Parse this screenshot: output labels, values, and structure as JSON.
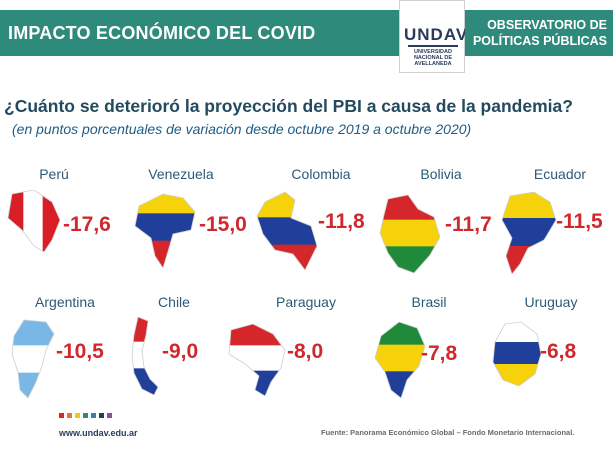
{
  "header": {
    "title": "IMPACTO ECONÓMICO DEL COVID",
    "logo": {
      "mark": "UNDAV",
      "sub": [
        "UNIVERSIDAD",
        "NACIONAL DE",
        "AVELLANEDA"
      ]
    },
    "observatorio": [
      "OBSERVATORIO DE",
      "POLÍTICAS PÚBLICAS"
    ]
  },
  "question": "¿Cuánto se deterioró la proyección del PBI a causa de la pandemia?",
  "subtitle": "(en puntos porcentuales de variación desde octubre 2019 a octubre 2020)",
  "chart_data": {
    "type": "table",
    "unit": "puntos porcentuales",
    "categories": [
      "Perú",
      "Venezuela",
      "Colombia",
      "Bolivia",
      "Ecuador",
      "Argentina",
      "Chile",
      "Paraguay",
      "Brasil",
      "Uruguay"
    ],
    "values": [
      -17.6,
      -15.0,
      -11.8,
      -11.7,
      -11.5,
      -10.5,
      -9.0,
      -8.0,
      -7.8,
      -6.8
    ],
    "labels": [
      "-17,6",
      "-15,0",
      "-11,8",
      "-11,7",
      "-11,5",
      "-10,5",
      "-9,0",
      "-8,0",
      "-7,8",
      "-6,8"
    ]
  },
  "flags": {
    "Perú": [
      "#d91f26",
      "#ffffff",
      "#d91f26"
    ],
    "Venezuela": [
      "#f5d20a",
      "#1f3f9a",
      "#d5262b"
    ],
    "Colombia": [
      "#f5d20a",
      "#1f3f9a",
      "#d5262b"
    ],
    "Bolivia": [
      "#d5262b",
      "#f5d20a",
      "#1f8a3a"
    ],
    "Ecuador": [
      "#f5d20a",
      "#1f3f9a",
      "#d5262b"
    ],
    "Argentina": [
      "#79b8e6",
      "#ffffff",
      "#79b8e6"
    ],
    "Chile": [
      "#d5262b",
      "#ffffff",
      "#1f3f9a"
    ],
    "Paraguay": [
      "#d5262b",
      "#ffffff",
      "#1f3f9a"
    ],
    "Brasil": [
      "#1f8a3a",
      "#f5d20a",
      "#1f3f9a"
    ],
    "Uruguay": [
      "#ffffff",
      "#1f3f9a",
      "#f5d20a"
    ]
  },
  "footer": {
    "url": "www.undav.edu.ar",
    "source": "Fuente: Panorama Económico Global – Fondo Monetario Internacional.",
    "dot_colors": [
      "#d5262b",
      "#e6782a",
      "#f5c518",
      "#2e8a7a",
      "#3b7bbd",
      "#2a3b5a",
      "#8a4fa0"
    ]
  },
  "colors": {
    "accent": "#2e8a7a",
    "value": "#d0282d",
    "question": "#234a5e"
  }
}
